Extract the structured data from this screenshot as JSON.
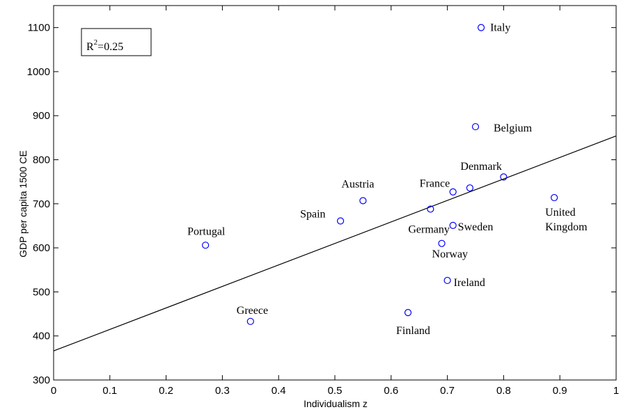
{
  "chart_data": {
    "type": "scatter",
    "title": "",
    "xlabel": "Individualism z",
    "ylabel": "GDP per capita 1500 CE",
    "xlim": [
      0,
      1
    ],
    "ylim": [
      300,
      1150
    ],
    "xticks": [
      0,
      0.1,
      0.2,
      0.3,
      0.4,
      0.5,
      0.6,
      0.7,
      0.8,
      0.9,
      1
    ],
    "xtick_labels": [
      "0",
      "0.1",
      "0.2",
      "0.3",
      "0.4",
      "0.5",
      "0.6",
      "0.7",
      "0.8",
      "0.9",
      "1"
    ],
    "yticks": [
      300,
      400,
      500,
      600,
      700,
      800,
      900,
      1000,
      1100
    ],
    "ytick_labels": [
      "300",
      "400",
      "500",
      "600",
      "700",
      "800",
      "900",
      "1000",
      "1100"
    ],
    "grid": false,
    "marker": "open-circle",
    "marker_color": "#0000ff",
    "points": [
      {
        "label": "Italy",
        "x": 0.76,
        "y": 1100
      },
      {
        "label": "Belgium",
        "x": 0.75,
        "y": 875
      },
      {
        "label": "Denmark",
        "x": 0.8,
        "y": 761
      },
      {
        "label": "France",
        "x": 0.71,
        "y": 727
      },
      {
        "label": "",
        "x": 0.74,
        "y": 736
      },
      {
        "label": "United Kingdom",
        "x": 0.89,
        "y": 714
      },
      {
        "label": "Austria",
        "x": 0.55,
        "y": 707
      },
      {
        "label": "Germany",
        "x": 0.67,
        "y": 688
      },
      {
        "label": "Spain",
        "x": 0.51,
        "y": 661
      },
      {
        "label": "Sweden",
        "x": 0.71,
        "y": 651
      },
      {
        "label": "Portugal",
        "x": 0.27,
        "y": 606
      },
      {
        "label": "Norway",
        "x": 0.69,
        "y": 610
      },
      {
        "label": "Ireland",
        "x": 0.7,
        "y": 526
      },
      {
        "label": "Finland",
        "x": 0.63,
        "y": 453
      },
      {
        "label": "Greece",
        "x": 0.35,
        "y": 433
      }
    ],
    "fit_line": {
      "x": [
        0,
        1
      ],
      "y": [
        366,
        854
      ]
    },
    "annotation": {
      "base": "R",
      "sup": "2",
      "rest": "=0.25"
    }
  }
}
